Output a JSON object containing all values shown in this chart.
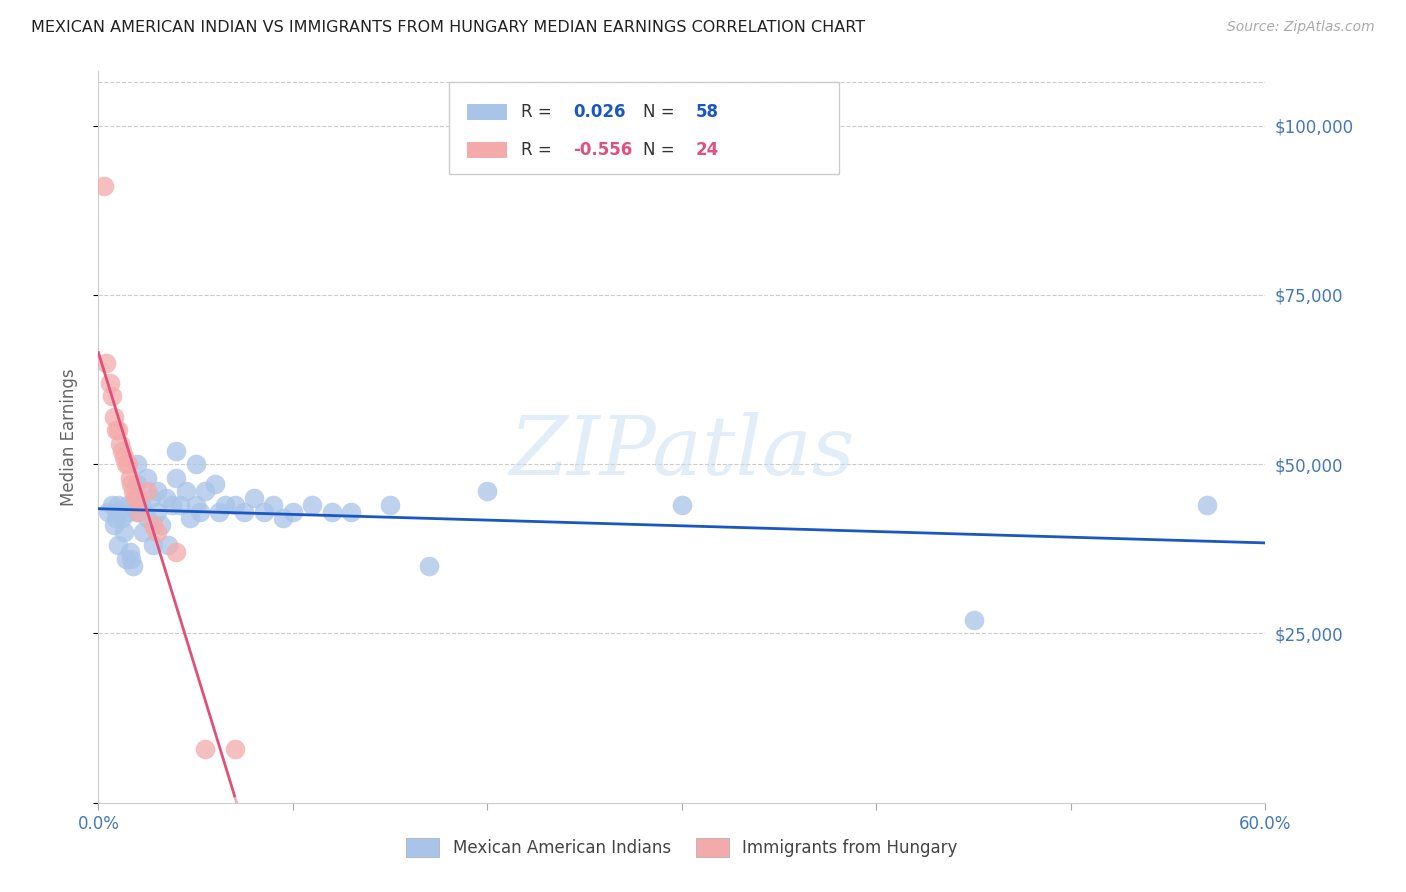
{
  "title": "MEXICAN AMERICAN INDIAN VS IMMIGRANTS FROM HUNGARY MEDIAN EARNINGS CORRELATION CHART",
  "source": "Source: ZipAtlas.com",
  "ylabel": "Median Earnings",
  "watermark": "ZIPatlas",
  "legend_r1_val": "0.026",
  "legend_n1_val": "58",
  "legend_r2_val": "-0.556",
  "legend_n2_val": "24",
  "blue_fill": "#a8c4e8",
  "pink_fill": "#f4aaaa",
  "line_blue_color": "#1a56c4",
  "line_pink_color": "#e0507a",
  "axis_label_color": "#4477bb",
  "yticks": [
    0,
    25000,
    50000,
    75000,
    100000
  ],
  "ytick_labels_right": [
    "",
    "$25,000",
    "$50,000",
    "$75,000",
    "$100,000"
  ],
  "xlim": [
    0.0,
    0.6
  ],
  "ylim": [
    0,
    108000
  ],
  "blue_x": [
    0.005,
    0.007,
    0.008,
    0.009,
    0.01,
    0.01,
    0.01,
    0.012,
    0.013,
    0.014,
    0.015,
    0.015,
    0.016,
    0.017,
    0.018,
    0.02,
    0.02,
    0.02,
    0.022,
    0.023,
    0.025,
    0.025,
    0.027,
    0.028,
    0.03,
    0.03,
    0.032,
    0.035,
    0.036,
    0.038,
    0.04,
    0.04,
    0.042,
    0.045,
    0.047,
    0.05,
    0.05,
    0.052,
    0.055,
    0.06,
    0.062,
    0.065,
    0.07,
    0.075,
    0.08,
    0.085,
    0.09,
    0.095,
    0.1,
    0.11,
    0.12,
    0.13,
    0.15,
    0.17,
    0.2,
    0.3,
    0.45,
    0.57
  ],
  "blue_y": [
    43000,
    44000,
    41000,
    42000,
    44000,
    43000,
    38000,
    42000,
    40000,
    36000,
    44000,
    43000,
    37000,
    36000,
    35000,
    50000,
    47000,
    43000,
    44000,
    40000,
    48000,
    42000,
    45000,
    38000,
    46000,
    43000,
    41000,
    45000,
    38000,
    44000,
    52000,
    48000,
    44000,
    46000,
    42000,
    50000,
    44000,
    43000,
    46000,
    47000,
    43000,
    44000,
    44000,
    43000,
    45000,
    43000,
    44000,
    42000,
    43000,
    44000,
    43000,
    43000,
    44000,
    35000,
    46000,
    44000,
    27000,
    44000
  ],
  "pink_x": [
    0.003,
    0.004,
    0.006,
    0.007,
    0.008,
    0.009,
    0.01,
    0.011,
    0.012,
    0.013,
    0.014,
    0.015,
    0.016,
    0.017,
    0.018,
    0.019,
    0.02,
    0.021,
    0.025,
    0.028,
    0.03,
    0.04,
    0.055,
    0.07
  ],
  "pink_y": [
    91000,
    65000,
    62000,
    60000,
    57000,
    55000,
    55000,
    53000,
    52000,
    51000,
    50000,
    50000,
    48000,
    47000,
    46000,
    45000,
    45000,
    43000,
    46000,
    41000,
    40000,
    37000,
    8000,
    8000
  ]
}
